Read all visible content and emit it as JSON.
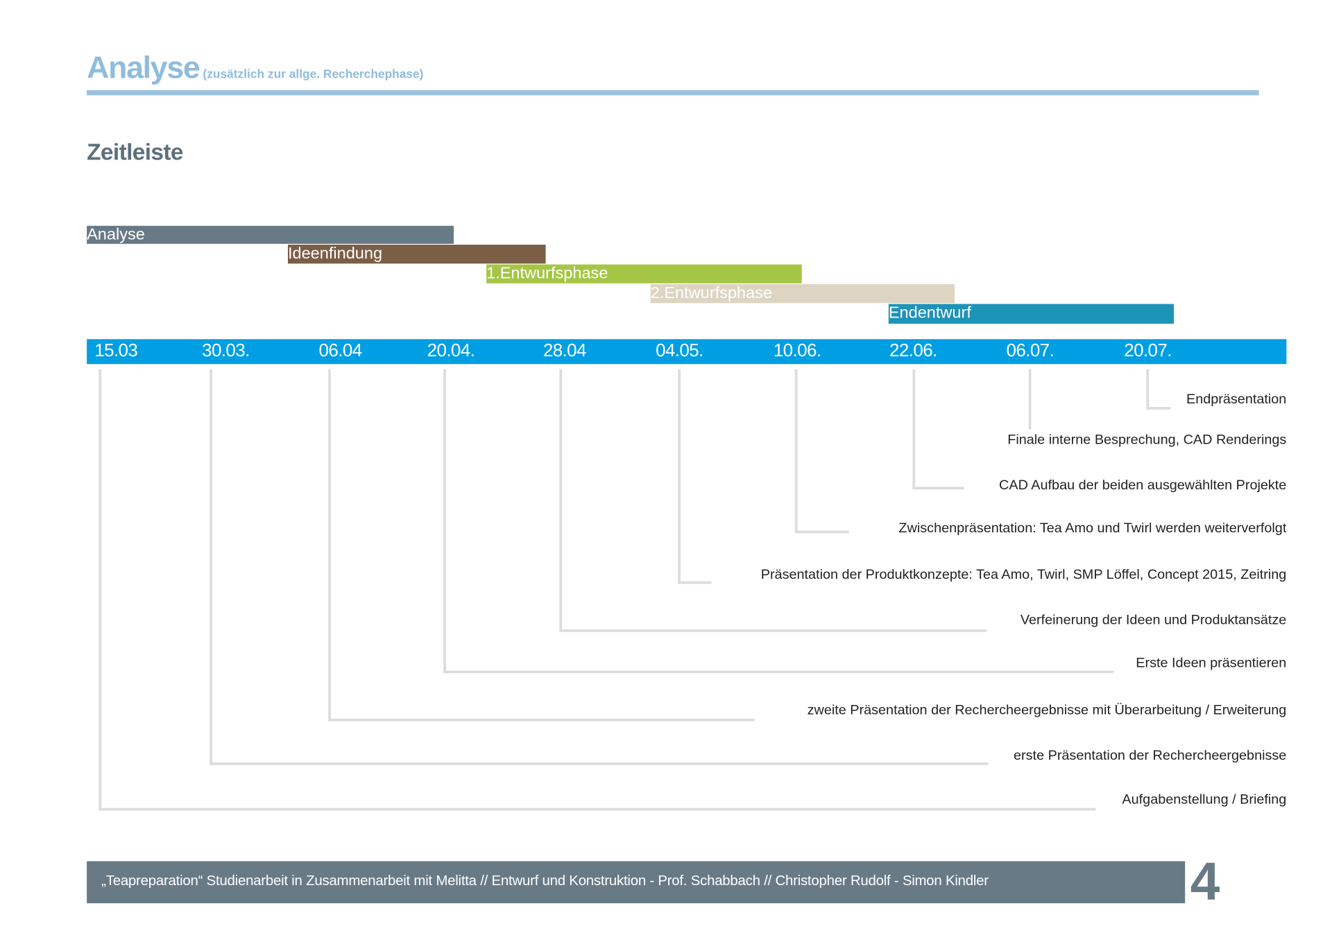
{
  "header": {
    "title": "Analyse",
    "subtitle": "(zusätzlich zur allge. Recherchephase)",
    "accent_color": "#8fbcdc"
  },
  "section_title": "Zeitleiste",
  "phases": [
    {
      "label": "Analyse",
      "color": "#687a85"
    },
    {
      "label": "Ideenfindung",
      "color": "#7b5e46"
    },
    {
      "label": "1.Entwurfsphase",
      "color": "#a5c645"
    },
    {
      "label": "2.Entwurfsphase",
      "color": "#ddd5c2"
    },
    {
      "label": "Endentwurf",
      "color": "#1e93b8"
    }
  ],
  "timeline": {
    "band_color": "#009fe3",
    "dates": [
      "15.03",
      "30.03.",
      "06.04",
      "20.04.",
      "28.04",
      "04.05.",
      "10.06.",
      "22.06.",
      "06.07.",
      "20.07."
    ]
  },
  "milestones": [
    {
      "date": "15.03",
      "label": "Aufgabenstellung / Briefing"
    },
    {
      "date": "30.03.",
      "label": "erste Präsentation der Rechercheergebnisse"
    },
    {
      "date": "06.04",
      "label": "zweite Präsentation der Rechercheergebnisse mit Überarbeitung / Erweiterung"
    },
    {
      "date": "20.04.",
      "label": "Erste Ideen präsentieren"
    },
    {
      "date": "28.04",
      "label": "Verfeinerung der Ideen und Produktansätze"
    },
    {
      "date": "04.05.",
      "label": "Präsentation der Produktkonzepte: Tea Amo, Twirl, SMP Löffel,  Concept 2015, Zeitring"
    },
    {
      "date": "10.06.",
      "label": "Zwischenpräsentation: Tea Amo und Twirl werden weiterverfolgt"
    },
    {
      "date": "22.06.",
      "label": "CAD Aufbau der beiden ausgewählten Projekte"
    },
    {
      "date": "06.07.",
      "label": "Finale interne Besprechung, CAD Renderings"
    },
    {
      "date": "20.07.",
      "label": "Endpräsentation"
    }
  ],
  "footer": {
    "text": "„Teapreparation“ Studienarbeit in Zusammenarbeit mit Melitta // Entwurf und Konstruktion - Prof. Schabbach // Christopher Rudolf - Simon Kindler",
    "color": "#687a85",
    "page_number": "4"
  }
}
